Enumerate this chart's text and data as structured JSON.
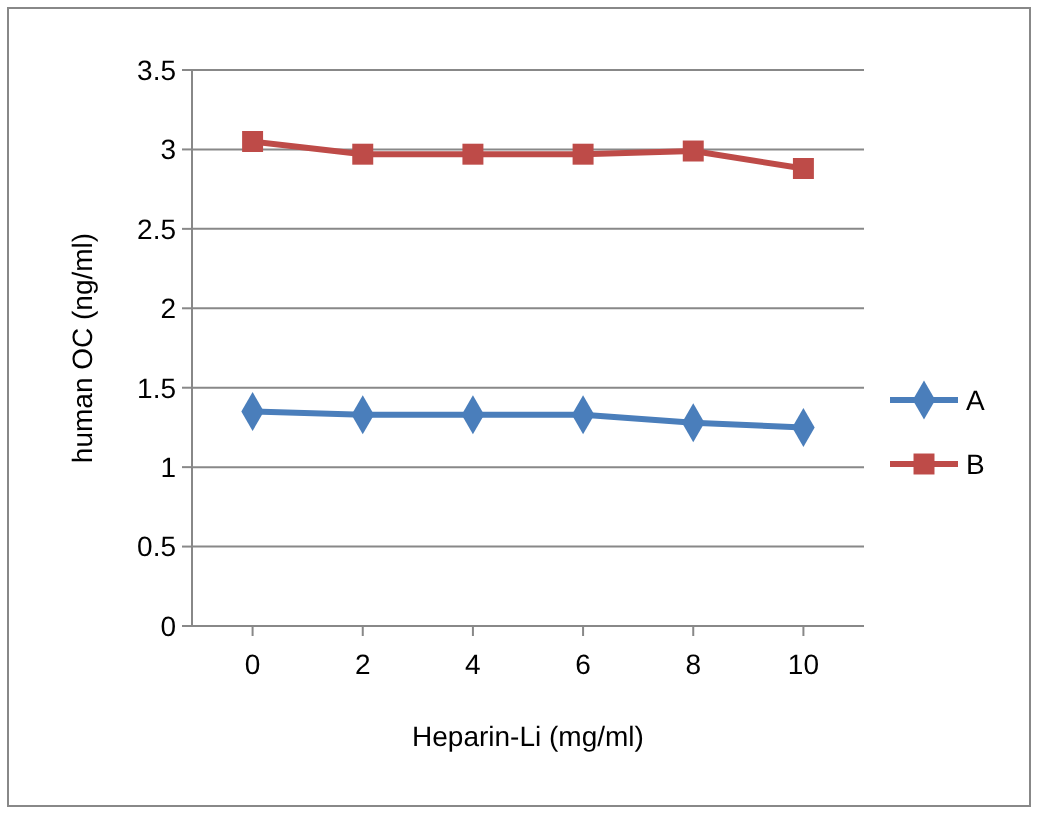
{
  "chart_data": {
    "type": "line",
    "xlabel": "Heparin-Li (mg/ml)",
    "ylabel": "human OC (ng/ml)",
    "categories": [
      "0",
      "2",
      "4",
      "6",
      "8",
      "10"
    ],
    "series": [
      {
        "name": "A",
        "color": "#4a7ebb",
        "marker": "diamond",
        "values": [
          1.35,
          1.33,
          1.33,
          1.33,
          1.28,
          1.25
        ]
      },
      {
        "name": "B",
        "color": "#be4b48",
        "marker": "square",
        "values": [
          3.05,
          2.97,
          2.97,
          2.97,
          2.99,
          2.88
        ]
      }
    ],
    "ylim": [
      0,
      3.5
    ],
    "yticks": [
      0,
      {
        "value": 0.5,
        "label": "0.5"
      },
      1,
      {
        "value": 1.5,
        "label": "1.5"
      },
      2,
      {
        "value": 2.5,
        "label": "2.5"
      },
      3,
      {
        "value": 3.5,
        "label": "3.5"
      }
    ],
    "grid": "y",
    "legend": "right"
  }
}
